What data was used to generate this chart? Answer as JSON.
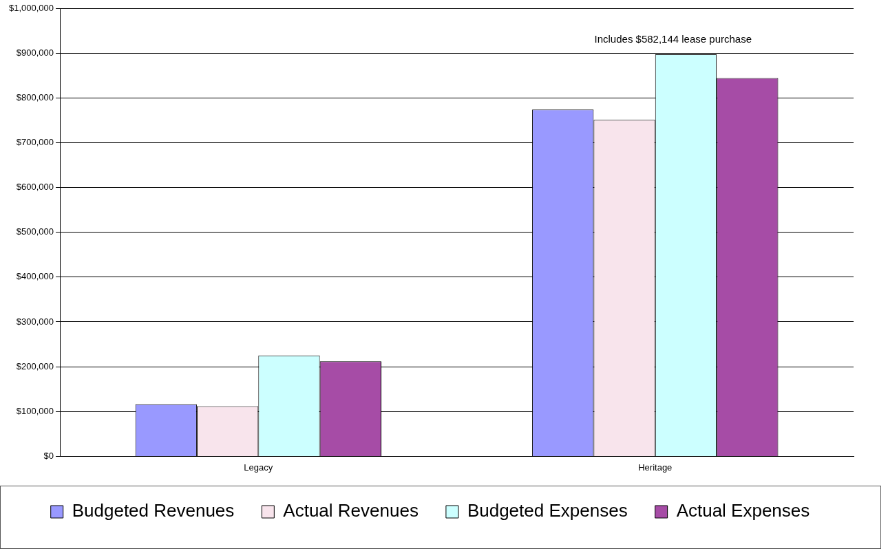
{
  "chart_data": {
    "type": "bar",
    "categories": [
      "Legacy",
      "Heritage"
    ],
    "series": [
      {
        "name": "Budgeted Revenues",
        "color": "#9999ff",
        "values": [
          116000,
          774000
        ]
      },
      {
        "name": "Actual Revenues",
        "color": "#f8e4ec",
        "values": [
          112000,
          751000
        ]
      },
      {
        "name": "Budgeted Expenses",
        "color": "#ccffff",
        "values": [
          225000,
          897000
        ]
      },
      {
        "name": "Actual Expenses",
        "color": "#a64ca6",
        "values": [
          212000,
          844000
        ]
      }
    ],
    "ylim": [
      0,
      1000000
    ],
    "yticks": [
      {
        "value": 0,
        "label": "$0"
      },
      {
        "value": 100000,
        "label": "$100,000"
      },
      {
        "value": 200000,
        "label": "$200,000"
      },
      {
        "value": 300000,
        "label": "$300,000"
      },
      {
        "value": 400000,
        "label": "$400,000"
      },
      {
        "value": 500000,
        "label": "$500,000"
      },
      {
        "value": 600000,
        "label": "$600,000"
      },
      {
        "value": 700000,
        "label": "$700,000"
      },
      {
        "value": 800000,
        "label": "$800,000"
      },
      {
        "value": 900000,
        "label": "$900,000"
      },
      {
        "value": 1000000,
        "label": "$1,000,000"
      }
    ],
    "grid": "y",
    "legend": "bottom",
    "annotations": [
      {
        "text": "Includes $582,144 lease purchase",
        "x": "Heritage",
        "y": 897000
      }
    ]
  }
}
